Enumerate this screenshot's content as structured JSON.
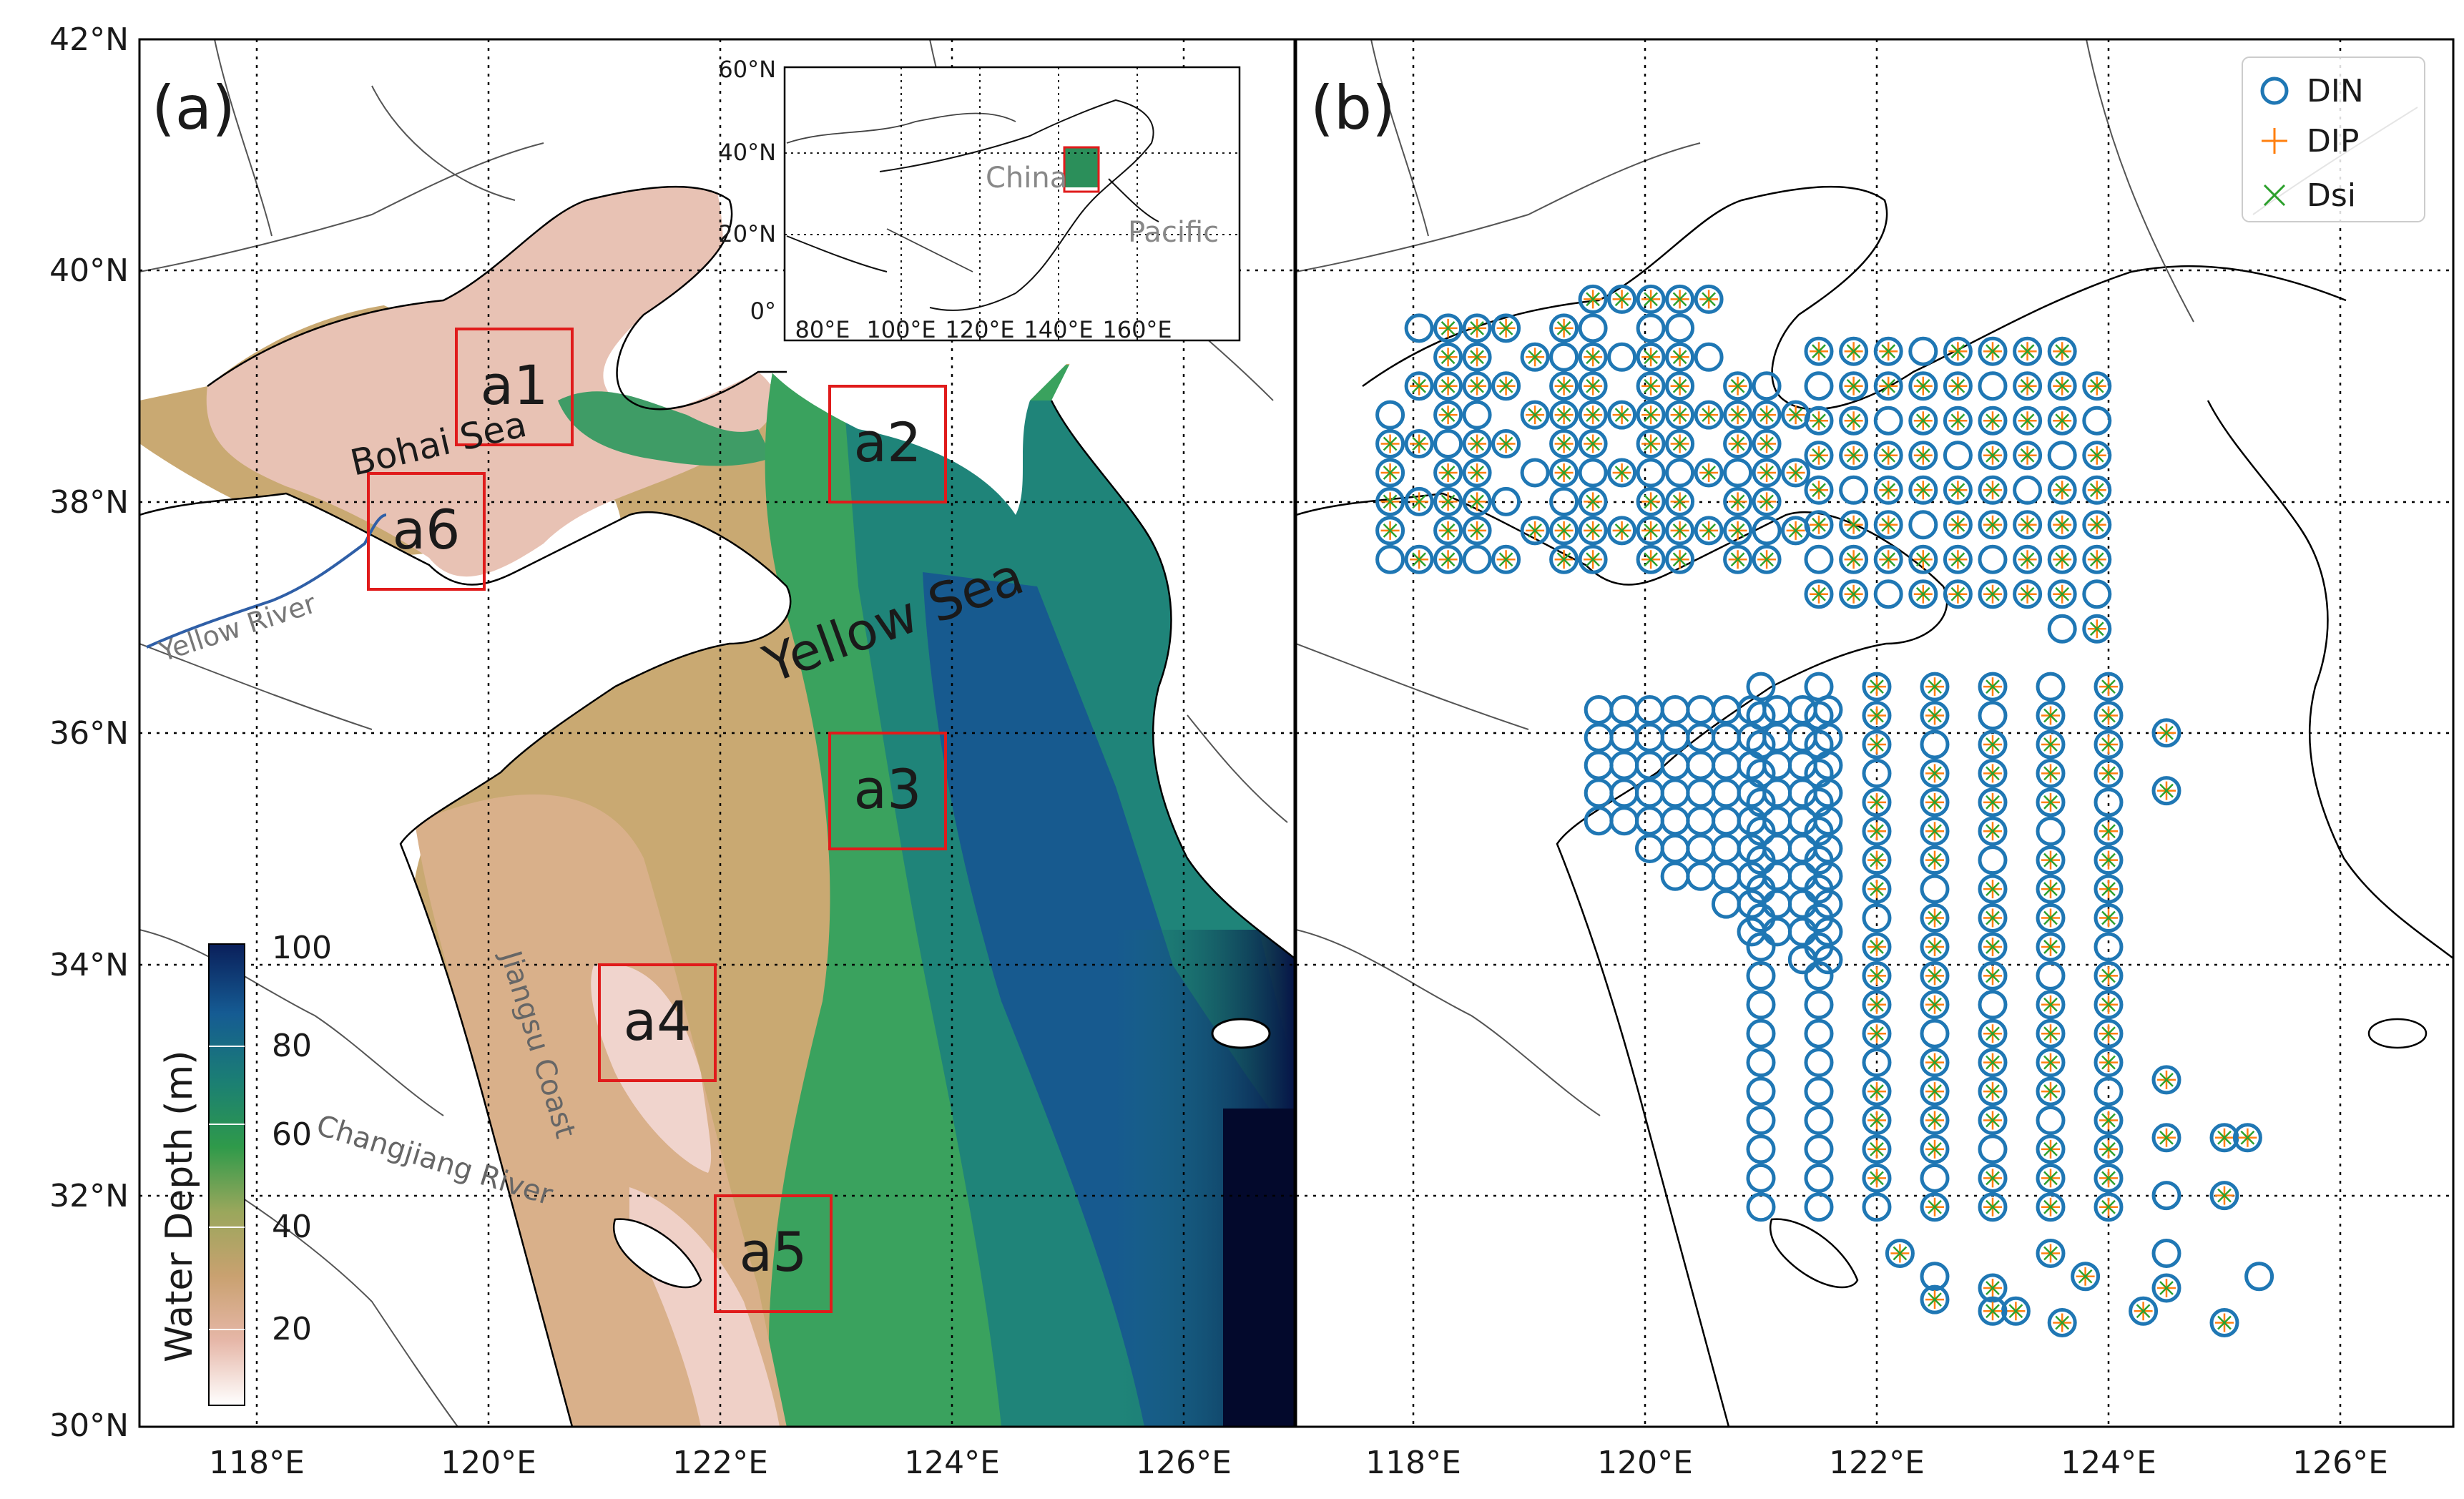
{
  "panel_a": {
    "label": "(a)",
    "x_ticks": [
      "118°E",
      "120°E",
      "122°E",
      "124°E",
      "126°E"
    ],
    "y_ticks": [
      "30°N",
      "32°N",
      "34°N",
      "36°N",
      "38°N",
      "40°N",
      "42°N"
    ],
    "regions": [
      {
        "name": "a1",
        "lon": 120.5,
        "lat": 38.95
      },
      {
        "name": "a2",
        "lon": 123.5,
        "lat": 38.5
      },
      {
        "name": "a3",
        "lon": 123.5,
        "lat": 35.5
      },
      {
        "name": "a4",
        "lon": 121.5,
        "lat": 33.5
      },
      {
        "name": "a5",
        "lon": 122.5,
        "lat": 31.5
      },
      {
        "name": "a6",
        "lon": 119.5,
        "lat": 37.75
      }
    ],
    "place_labels": {
      "bohai": "Bohai Sea",
      "yellow_sea": "Yellow Sea",
      "yellow_river": "Yellow River",
      "jiangsu": "Jiangsu Coast",
      "changjiang": "Changjiang River"
    },
    "colorbar": {
      "label": "Water Depth (m)",
      "ticks": [
        "20",
        "40",
        "60",
        "80",
        "100"
      ],
      "range": [
        10,
        100
      ],
      "colors": [
        "#ffffff",
        "#e6b7a8",
        "#c9a170",
        "#9aa75c",
        "#2f9a4a",
        "#1b7f73",
        "#155b93",
        "#0a1f5a"
      ]
    },
    "inset": {
      "x_ticks": [
        "80°E",
        "100°E",
        "120°E",
        "140°E",
        "160°E"
      ],
      "y_ticks": [
        "0°",
        "20°N",
        "40°N",
        "60°N"
      ],
      "china": "China",
      "pacific": "Pacific"
    }
  },
  "panel_b": {
    "label": "(b)",
    "x_ticks": [
      "118°E",
      "120°E",
      "122°E",
      "124°E",
      "126°E"
    ],
    "legend": [
      {
        "name": "DIN",
        "color": "#1f77b4"
      },
      {
        "name": "DIP",
        "color": "#ff7f0e"
      },
      {
        "name": "Dsi",
        "color": "#2ca02c"
      }
    ]
  }
}
